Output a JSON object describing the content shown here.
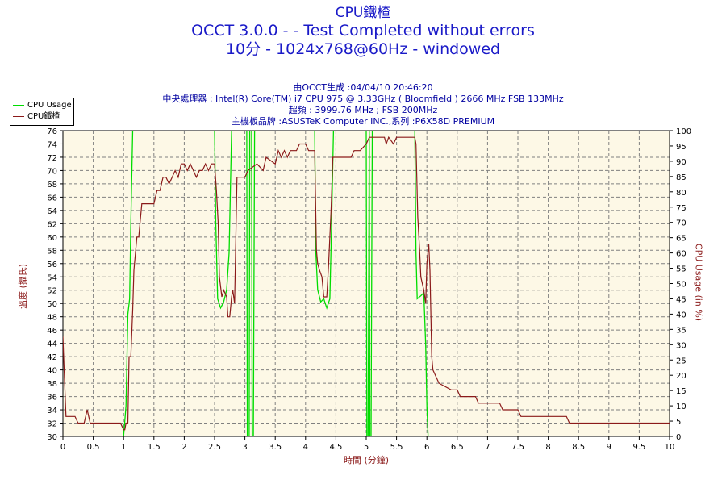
{
  "header": {
    "title": "CPU鐵楂",
    "subtitle1": "OCCT 3.0.0 -  - Test Completed without errors",
    "subtitle2": "10分 - 1024x768@60Hz - windowed"
  },
  "info": {
    "line1": "由OCCT生成 :04/04/10 20:46:20",
    "line2": "中央處理器 : Intel(R) Core(TM) i7 CPU 975 @ 3.33GHz ( Bloomfield ) 2666 MHz FSB 133MHz",
    "line3": "超頻 : 3999.76 MHz ; FSB 200MHz",
    "line4": "主機板品牌 :ASUSTeK Computer INC.,系列 :P6X58D PREMIUM"
  },
  "colors": {
    "usage": "#00dd00",
    "temp": "#8b1a1a",
    "plot_bg": "#fdf8e6",
    "grid": "#808080"
  },
  "chart_data": {
    "type": "line",
    "xlabel": "時間 (分鐘)",
    "ylabel_left": "溫度 (攝氏)",
    "ylabel_right": "CPU Usage (in %)",
    "xlim": [
      0,
      10
    ],
    "ylim_left": [
      30,
      76
    ],
    "ylim_right": [
      0,
      100
    ],
    "x_ticks": [
      "0",
      "0.5",
      "1",
      "1.5",
      "2",
      "2.5",
      "3",
      "3.5",
      "4",
      "4.5",
      "5",
      "5.5",
      "6",
      "6.5",
      "7",
      "7.5",
      "8",
      "8.5",
      "9",
      "9.5",
      "10"
    ],
    "y_left_ticks": [
      "30",
      "32",
      "34",
      "36",
      "38",
      "40",
      "42",
      "44",
      "46",
      "48",
      "50",
      "52",
      "54",
      "56",
      "58",
      "60",
      "62",
      "64",
      "66",
      "68",
      "70",
      "72",
      "74",
      "76"
    ],
    "y_right_ticks": [
      "0",
      "5",
      "10",
      "15",
      "20",
      "25",
      "30",
      "35",
      "40",
      "45",
      "50",
      "55",
      "60",
      "65",
      "70",
      "75",
      "80",
      "85",
      "90",
      "95",
      "100"
    ],
    "grid": true,
    "legend_position": "top-left",
    "series": [
      {
        "name": "CPU Usage",
        "axis": "right",
        "points": [
          [
            0,
            0
          ],
          [
            1.0,
            0
          ],
          [
            1.04,
            10
          ],
          [
            1.07,
            40
          ],
          [
            1.1,
            45
          ],
          [
            1.12,
            70
          ],
          [
            1.15,
            100
          ],
          [
            2.5,
            100
          ],
          [
            2.52,
            70
          ],
          [
            2.55,
            45
          ],
          [
            2.6,
            42
          ],
          [
            2.65,
            44
          ],
          [
            2.7,
            48
          ],
          [
            2.74,
            60
          ],
          [
            2.78,
            100
          ],
          [
            3.03,
            100
          ],
          [
            3.04,
            0
          ],
          [
            3.07,
            0
          ],
          [
            3.08,
            100
          ],
          [
            3.11,
            100
          ],
          [
            3.12,
            0
          ],
          [
            3.14,
            0
          ],
          [
            3.16,
            100
          ],
          [
            4.15,
            100
          ],
          [
            4.17,
            60
          ],
          [
            4.2,
            48
          ],
          [
            4.25,
            44
          ],
          [
            4.3,
            45
          ],
          [
            4.35,
            42
          ],
          [
            4.4,
            45
          ],
          [
            4.43,
            70
          ],
          [
            4.46,
            100
          ],
          [
            5.0,
            100
          ],
          [
            5.01,
            0
          ],
          [
            5.03,
            0
          ],
          [
            5.05,
            100
          ],
          [
            5.06,
            0
          ],
          [
            5.08,
            0
          ],
          [
            5.1,
            100
          ],
          [
            5.8,
            100
          ],
          [
            5.82,
            60
          ],
          [
            5.84,
            45
          ],
          [
            5.9,
            46
          ],
          [
            5.95,
            47
          ],
          [
            5.98,
            30
          ],
          [
            6.0,
            10
          ],
          [
            6.02,
            0
          ],
          [
            6.5,
            0
          ],
          [
            10,
            0
          ]
        ]
      },
      {
        "name": "CPU鐵楂",
        "axis": "left",
        "points": [
          [
            0,
            45
          ],
          [
            0.02,
            40
          ],
          [
            0.05,
            33
          ],
          [
            0.2,
            33
          ],
          [
            0.25,
            32
          ],
          [
            0.35,
            32
          ],
          [
            0.4,
            34
          ],
          [
            0.45,
            32
          ],
          [
            0.95,
            32
          ],
          [
            1.0,
            31
          ],
          [
            1.02,
            31
          ],
          [
            1.04,
            32
          ],
          [
            1.07,
            32
          ],
          [
            1.09,
            42
          ],
          [
            1.12,
            42
          ],
          [
            1.15,
            49
          ],
          [
            1.17,
            55
          ],
          [
            1.2,
            58
          ],
          [
            1.22,
            60
          ],
          [
            1.25,
            60
          ],
          [
            1.27,
            62
          ],
          [
            1.3,
            65
          ],
          [
            1.5,
            65
          ],
          [
            1.55,
            67
          ],
          [
            1.6,
            67
          ],
          [
            1.65,
            69
          ],
          [
            1.7,
            69
          ],
          [
            1.75,
            68
          ],
          [
            1.8,
            69
          ],
          [
            1.85,
            70
          ],
          [
            1.9,
            69
          ],
          [
            1.95,
            71
          ],
          [
            2.0,
            71
          ],
          [
            2.05,
            70
          ],
          [
            2.1,
            71
          ],
          [
            2.15,
            70
          ],
          [
            2.2,
            69
          ],
          [
            2.25,
            70
          ],
          [
            2.3,
            70
          ],
          [
            2.35,
            71
          ],
          [
            2.4,
            70
          ],
          [
            2.45,
            71
          ],
          [
            2.5,
            71
          ],
          [
            2.53,
            67
          ],
          [
            2.56,
            62
          ],
          [
            2.58,
            54
          ],
          [
            2.62,
            51
          ],
          [
            2.65,
            52
          ],
          [
            2.7,
            51
          ],
          [
            2.72,
            48
          ],
          [
            2.75,
            48
          ],
          [
            2.78,
            51
          ],
          [
            2.8,
            52
          ],
          [
            2.83,
            50
          ],
          [
            2.87,
            69
          ],
          [
            3.0,
            69
          ],
          [
            3.05,
            70
          ],
          [
            3.2,
            71
          ],
          [
            3.3,
            70
          ],
          [
            3.35,
            72
          ],
          [
            3.5,
            71
          ],
          [
            3.55,
            73
          ],
          [
            3.6,
            72
          ],
          [
            3.65,
            73
          ],
          [
            3.7,
            72
          ],
          [
            3.75,
            73
          ],
          [
            3.85,
            73
          ],
          [
            3.9,
            74
          ],
          [
            4.0,
            74
          ],
          [
            4.05,
            73
          ],
          [
            4.15,
            73
          ],
          [
            4.18,
            58
          ],
          [
            4.2,
            56
          ],
          [
            4.23,
            55
          ],
          [
            4.27,
            54
          ],
          [
            4.3,
            51
          ],
          [
            4.35,
            51
          ],
          [
            4.38,
            56
          ],
          [
            4.42,
            64
          ],
          [
            4.45,
            72
          ],
          [
            4.75,
            72
          ],
          [
            4.8,
            73
          ],
          [
            4.9,
            73
          ],
          [
            5.0,
            74
          ],
          [
            5.05,
            75
          ],
          [
            5.3,
            75
          ],
          [
            5.33,
            74
          ],
          [
            5.37,
            75
          ],
          [
            5.45,
            74
          ],
          [
            5.5,
            75
          ],
          [
            5.8,
            75
          ],
          [
            5.82,
            74
          ],
          [
            5.85,
            63
          ],
          [
            5.88,
            58
          ],
          [
            5.9,
            54
          ],
          [
            5.95,
            52
          ],
          [
            5.98,
            50
          ],
          [
            6.0,
            56
          ],
          [
            6.03,
            59
          ],
          [
            6.05,
            55
          ],
          [
            6.08,
            42
          ],
          [
            6.1,
            40
          ],
          [
            6.2,
            38
          ],
          [
            6.4,
            37
          ],
          [
            6.5,
            37
          ],
          [
            6.55,
            36
          ],
          [
            6.8,
            36
          ],
          [
            6.85,
            35
          ],
          [
            7.2,
            35
          ],
          [
            7.25,
            34
          ],
          [
            7.5,
            34
          ],
          [
            7.55,
            33
          ],
          [
            8.3,
            33
          ],
          [
            8.35,
            32
          ],
          [
            10,
            32
          ]
        ]
      }
    ]
  }
}
